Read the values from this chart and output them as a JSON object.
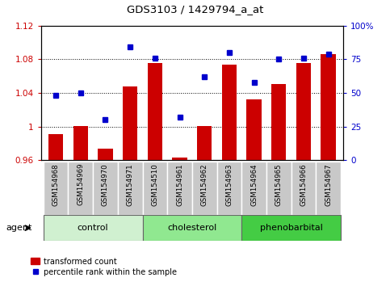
{
  "title": "GDS3103 / 1429794_a_at",
  "samples": [
    "GSM154968",
    "GSM154969",
    "GSM154970",
    "GSM154971",
    "GSM154510",
    "GSM154961",
    "GSM154962",
    "GSM154963",
    "GSM154964",
    "GSM154965",
    "GSM154966",
    "GSM154967"
  ],
  "bar_values": [
    0.991,
    1.001,
    0.974,
    1.048,
    1.076,
    0.963,
    1.001,
    1.074,
    1.032,
    1.051,
    1.076,
    1.086
  ],
  "dot_values": [
    48,
    50,
    30,
    84,
    76,
    32,
    62,
    80,
    58,
    75,
    76,
    79
  ],
  "groups": [
    {
      "label": "control",
      "start": 0,
      "end": 4,
      "color": "#d0f0d0"
    },
    {
      "label": "cholesterol",
      "start": 4,
      "end": 8,
      "color": "#90e890"
    },
    {
      "label": "phenobarbital",
      "start": 8,
      "end": 12,
      "color": "#44cc44"
    }
  ],
  "ylim_left": [
    0.96,
    1.12
  ],
  "ylim_right": [
    0,
    100
  ],
  "yticks_left": [
    0.96,
    1.0,
    1.04,
    1.08,
    1.12
  ],
  "yticks_left_labels": [
    "0.96",
    "1",
    "1.04",
    "1.08",
    "1.12"
  ],
  "yticks_right": [
    0,
    25,
    50,
    75,
    100
  ],
  "yticks_right_labels": [
    "0",
    "25",
    "50",
    "75",
    "100%"
  ],
  "bar_color": "#cc0000",
  "dot_color": "#0000cc",
  "bar_width": 0.6,
  "grid_yticks": [
    1.0,
    1.04,
    1.08
  ],
  "legend_bar_label": "transformed count",
  "legend_dot_label": "percentile rank within the sample",
  "agent_label": "agent",
  "tick_label_bg": "#c8c8c8"
}
